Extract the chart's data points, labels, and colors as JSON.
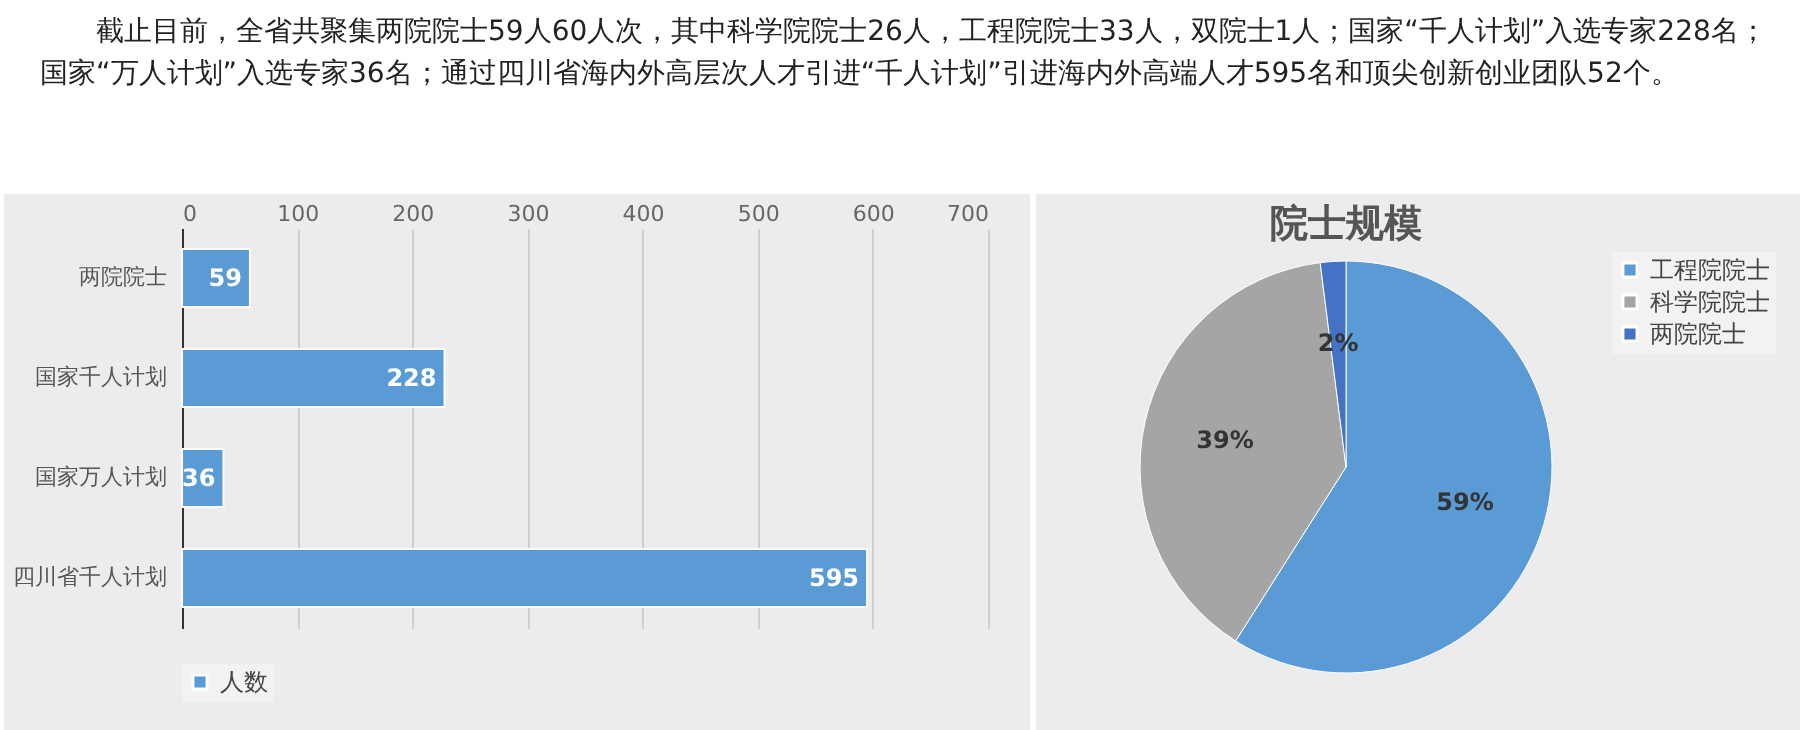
{
  "chart_data": [
    {
      "type": "other",
      "annotations": [
        "截止目前，全省共聚集两院院士59人60人次，其中科学院院士26人，工程院院士33人，双院士1人；国家“千人计划”入选专家228名；国家“万人计划”入选专家36名；通过四川省海内外高层次人才引进“千人计划”引进海内外高端人才595名和顶尖创新创业团队52个。"
      ]
    },
    {
      "type": "bar",
      "orientation": "horizontal",
      "categories": [
        "两院院士",
        "国家千人计划",
        "国家万人计划",
        "四川省千人计划"
      ],
      "series": [
        {
          "name": "人数",
          "color": "#5b9bd5",
          "values": [
            59,
            228,
            36,
            595
          ]
        }
      ],
      "xlim": [
        0,
        700
      ],
      "xticks": [
        0,
        100,
        200,
        300,
        400,
        500,
        600,
        700
      ],
      "grid": "x",
      "data_labels": true,
      "legend": "bottom"
    },
    {
      "type": "pie",
      "title": "院士规模",
      "categories": [
        "工程院院士",
        "科学院院士",
        "两院院士"
      ],
      "values": [
        59,
        39,
        2
      ],
      "colors": [
        "#5b9bd5",
        "#a5a5a5",
        "#4472c4"
      ],
      "value_labels": [
        "59%",
        "39%",
        "2%"
      ],
      "legend": "right"
    }
  ]
}
